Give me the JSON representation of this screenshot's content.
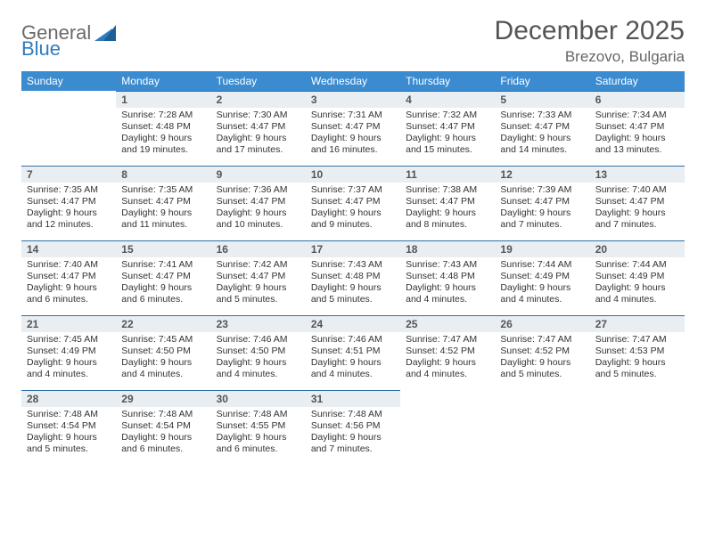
{
  "brand": {
    "part1": "General",
    "part2": "Blue"
  },
  "title": {
    "month": "December 2025",
    "location": "Brezovo, Bulgaria"
  },
  "colors": {
    "header_bg": "#3b8bd0",
    "header_text": "#ffffff",
    "daynum_bg": "#e9eef2",
    "daynum_border": "#2f6fa6",
    "text": "#333333",
    "title_text": "#555555",
    "location_text": "#666666",
    "page_bg": "#ffffff",
    "logo_gray": "#6a6a6a",
    "logo_blue": "#2f7bbf"
  },
  "weekdays": [
    "Sunday",
    "Monday",
    "Tuesday",
    "Wednesday",
    "Thursday",
    "Friday",
    "Saturday"
  ],
  "weeks": [
    [
      null,
      {
        "n": "1",
        "sr": "Sunrise: 7:28 AM",
        "ss": "Sunset: 4:48 PM",
        "d1": "Daylight: 9 hours",
        "d2": "and 19 minutes."
      },
      {
        "n": "2",
        "sr": "Sunrise: 7:30 AM",
        "ss": "Sunset: 4:47 PM",
        "d1": "Daylight: 9 hours",
        "d2": "and 17 minutes."
      },
      {
        "n": "3",
        "sr": "Sunrise: 7:31 AM",
        "ss": "Sunset: 4:47 PM",
        "d1": "Daylight: 9 hours",
        "d2": "and 16 minutes."
      },
      {
        "n": "4",
        "sr": "Sunrise: 7:32 AM",
        "ss": "Sunset: 4:47 PM",
        "d1": "Daylight: 9 hours",
        "d2": "and 15 minutes."
      },
      {
        "n": "5",
        "sr": "Sunrise: 7:33 AM",
        "ss": "Sunset: 4:47 PM",
        "d1": "Daylight: 9 hours",
        "d2": "and 14 minutes."
      },
      {
        "n": "6",
        "sr": "Sunrise: 7:34 AM",
        "ss": "Sunset: 4:47 PM",
        "d1": "Daylight: 9 hours",
        "d2": "and 13 minutes."
      }
    ],
    [
      {
        "n": "7",
        "sr": "Sunrise: 7:35 AM",
        "ss": "Sunset: 4:47 PM",
        "d1": "Daylight: 9 hours",
        "d2": "and 12 minutes."
      },
      {
        "n": "8",
        "sr": "Sunrise: 7:35 AM",
        "ss": "Sunset: 4:47 PM",
        "d1": "Daylight: 9 hours",
        "d2": "and 11 minutes."
      },
      {
        "n": "9",
        "sr": "Sunrise: 7:36 AM",
        "ss": "Sunset: 4:47 PM",
        "d1": "Daylight: 9 hours",
        "d2": "and 10 minutes."
      },
      {
        "n": "10",
        "sr": "Sunrise: 7:37 AM",
        "ss": "Sunset: 4:47 PM",
        "d1": "Daylight: 9 hours",
        "d2": "and 9 minutes."
      },
      {
        "n": "11",
        "sr": "Sunrise: 7:38 AM",
        "ss": "Sunset: 4:47 PM",
        "d1": "Daylight: 9 hours",
        "d2": "and 8 minutes."
      },
      {
        "n": "12",
        "sr": "Sunrise: 7:39 AM",
        "ss": "Sunset: 4:47 PM",
        "d1": "Daylight: 9 hours",
        "d2": "and 7 minutes."
      },
      {
        "n": "13",
        "sr": "Sunrise: 7:40 AM",
        "ss": "Sunset: 4:47 PM",
        "d1": "Daylight: 9 hours",
        "d2": "and 7 minutes."
      }
    ],
    [
      {
        "n": "14",
        "sr": "Sunrise: 7:40 AM",
        "ss": "Sunset: 4:47 PM",
        "d1": "Daylight: 9 hours",
        "d2": "and 6 minutes."
      },
      {
        "n": "15",
        "sr": "Sunrise: 7:41 AM",
        "ss": "Sunset: 4:47 PM",
        "d1": "Daylight: 9 hours",
        "d2": "and 6 minutes."
      },
      {
        "n": "16",
        "sr": "Sunrise: 7:42 AM",
        "ss": "Sunset: 4:47 PM",
        "d1": "Daylight: 9 hours",
        "d2": "and 5 minutes."
      },
      {
        "n": "17",
        "sr": "Sunrise: 7:43 AM",
        "ss": "Sunset: 4:48 PM",
        "d1": "Daylight: 9 hours",
        "d2": "and 5 minutes."
      },
      {
        "n": "18",
        "sr": "Sunrise: 7:43 AM",
        "ss": "Sunset: 4:48 PM",
        "d1": "Daylight: 9 hours",
        "d2": "and 4 minutes."
      },
      {
        "n": "19",
        "sr": "Sunrise: 7:44 AM",
        "ss": "Sunset: 4:49 PM",
        "d1": "Daylight: 9 hours",
        "d2": "and 4 minutes."
      },
      {
        "n": "20",
        "sr": "Sunrise: 7:44 AM",
        "ss": "Sunset: 4:49 PM",
        "d1": "Daylight: 9 hours",
        "d2": "and 4 minutes."
      }
    ],
    [
      {
        "n": "21",
        "sr": "Sunrise: 7:45 AM",
        "ss": "Sunset: 4:49 PM",
        "d1": "Daylight: 9 hours",
        "d2": "and 4 minutes."
      },
      {
        "n": "22",
        "sr": "Sunrise: 7:45 AM",
        "ss": "Sunset: 4:50 PM",
        "d1": "Daylight: 9 hours",
        "d2": "and 4 minutes."
      },
      {
        "n": "23",
        "sr": "Sunrise: 7:46 AM",
        "ss": "Sunset: 4:50 PM",
        "d1": "Daylight: 9 hours",
        "d2": "and 4 minutes."
      },
      {
        "n": "24",
        "sr": "Sunrise: 7:46 AM",
        "ss": "Sunset: 4:51 PM",
        "d1": "Daylight: 9 hours",
        "d2": "and 4 minutes."
      },
      {
        "n": "25",
        "sr": "Sunrise: 7:47 AM",
        "ss": "Sunset: 4:52 PM",
        "d1": "Daylight: 9 hours",
        "d2": "and 4 minutes."
      },
      {
        "n": "26",
        "sr": "Sunrise: 7:47 AM",
        "ss": "Sunset: 4:52 PM",
        "d1": "Daylight: 9 hours",
        "d2": "and 5 minutes."
      },
      {
        "n": "27",
        "sr": "Sunrise: 7:47 AM",
        "ss": "Sunset: 4:53 PM",
        "d1": "Daylight: 9 hours",
        "d2": "and 5 minutes."
      }
    ],
    [
      {
        "n": "28",
        "sr": "Sunrise: 7:48 AM",
        "ss": "Sunset: 4:54 PM",
        "d1": "Daylight: 9 hours",
        "d2": "and 5 minutes."
      },
      {
        "n": "29",
        "sr": "Sunrise: 7:48 AM",
        "ss": "Sunset: 4:54 PM",
        "d1": "Daylight: 9 hours",
        "d2": "and 6 minutes."
      },
      {
        "n": "30",
        "sr": "Sunrise: 7:48 AM",
        "ss": "Sunset: 4:55 PM",
        "d1": "Daylight: 9 hours",
        "d2": "and 6 minutes."
      },
      {
        "n": "31",
        "sr": "Sunrise: 7:48 AM",
        "ss": "Sunset: 4:56 PM",
        "d1": "Daylight: 9 hours",
        "d2": "and 7 minutes."
      },
      null,
      null,
      null
    ]
  ]
}
